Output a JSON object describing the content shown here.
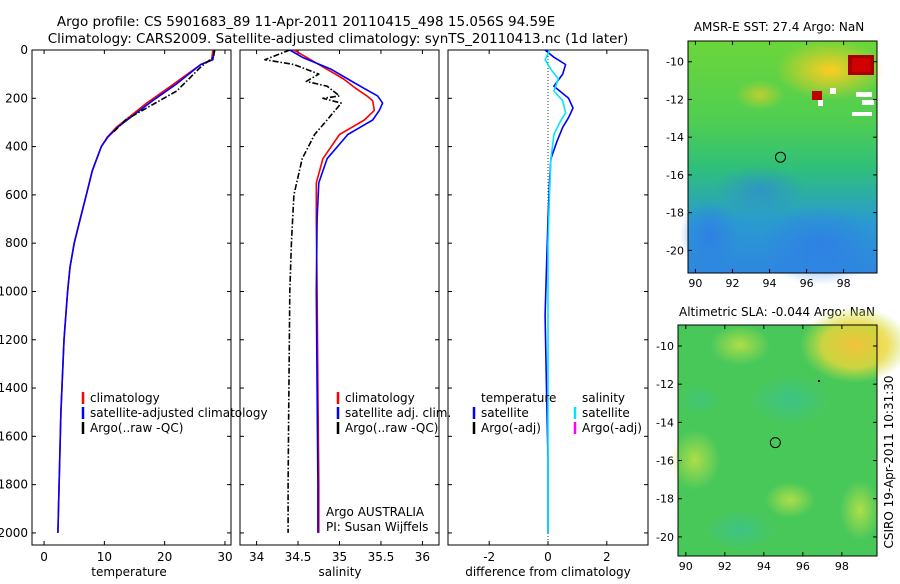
{
  "header": {
    "title_line1": "Argo profile: CS 5901683_89 11-Apr-2011 20110415_498 15.056S 94.59E",
    "title_line2": "Climatology: CARS2009. Satellite-adjusted climatology: synTS_20110413.nc (1d later)"
  },
  "side_stamp": "CSIRO 19-Apr-2011 10:31:30",
  "colors": {
    "climatology": "#ff0000",
    "satellite": "#0000ff",
    "argo": "#000000",
    "salinity_satellite": "#00e5ff",
    "salinity_argo_adj": "#ff00ff"
  },
  "chart_data": [
    {
      "type": "line",
      "xlabel": "temperature",
      "xlim": [
        -2,
        31
      ],
      "ylim": [
        0,
        2050
      ],
      "y_reversed": true,
      "xticks": [
        0,
        10,
        20,
        30
      ],
      "yticks": [
        0,
        200,
        400,
        600,
        800,
        1000,
        1200,
        1400,
        1600,
        1800,
        2000
      ],
      "legend": [
        "climatology",
        "satellite-adjusted climatology",
        "Argo(..raw -QC)"
      ],
      "legend_colors": [
        "#ff0000",
        "#0000ff",
        "#000000"
      ],
      "series": [
        {
          "name": "climatology",
          "color": "#ff0000",
          "dash": "",
          "x": [
            28.0,
            27.8,
            26,
            21,
            17,
            14,
            12,
            10.5,
            9.5,
            8,
            7,
            6,
            5,
            4.3,
            3.9,
            3.3,
            2.8,
            2.5,
            2.3
          ],
          "y": [
            0,
            40,
            60,
            150,
            220,
            280,
            320,
            360,
            400,
            500,
            600,
            700,
            800,
            900,
            1000,
            1200,
            1500,
            1800,
            2000
          ]
        },
        {
          "name": "satellite-adjusted climatology",
          "color": "#0000ff",
          "dash": "",
          "x": [
            28.2,
            28.0,
            26,
            22,
            18,
            14.3,
            12.2,
            10.6,
            9.5,
            8,
            7,
            6,
            5,
            4.3,
            3.9,
            3.3,
            2.8,
            2.5,
            2.3
          ],
          "y": [
            0,
            40,
            60,
            140,
            210,
            280,
            320,
            360,
            400,
            500,
            600,
            700,
            800,
            900,
            1000,
            1200,
            1500,
            1800,
            2000
          ]
        },
        {
          "name": "Argo(..raw -QC)",
          "color": "#000000",
          "dash": "6,2,1.5,2",
          "x": [
            28.3,
            28.1,
            26,
            24,
            22,
            17,
            13.5,
            11.5
          ],
          "y": [
            0,
            30,
            70,
            120,
            170,
            240,
            290,
            340
          ]
        }
      ]
    },
    {
      "type": "line",
      "xlabel": "salinity",
      "xlim": [
        33.8,
        36.2
      ],
      "ylim": [
        0,
        2050
      ],
      "y_reversed": true,
      "xticks": [
        34,
        34.5,
        35,
        35.5,
        36
      ],
      "legend": [
        "climatology",
        "satellite adj. clim.",
        "Argo(..raw -QC)"
      ],
      "legend_colors": [
        "#ff0000",
        "#0000ff",
        "#000000"
      ],
      "annotation": [
        "Argo AUSTRALIA",
        "PI: Susan Wijffels"
      ],
      "series": [
        {
          "name": "climatology",
          "color": "#ff0000",
          "dash": "",
          "x": [
            34.45,
            34.6,
            34.85,
            35.05,
            35.2,
            35.33,
            35.4,
            35.42,
            35.3,
            35.0,
            34.8,
            34.72,
            34.72,
            34.73,
            34.74,
            34.75,
            34.75
          ],
          "y": [
            0,
            30,
            80,
            120,
            160,
            190,
            210,
            250,
            290,
            350,
            450,
            550,
            700,
            1000,
            1400,
            1800,
            2000
          ]
        },
        {
          "name": "satellite adj. clim.",
          "color": "#0000ff",
          "dash": "",
          "x": [
            34.4,
            34.55,
            34.9,
            35.1,
            35.3,
            35.46,
            35.52,
            35.48,
            35.4,
            35.1,
            34.85,
            34.75,
            34.73,
            34.72,
            34.73,
            34.74,
            34.74
          ],
          "y": [
            0,
            30,
            80,
            120,
            160,
            190,
            220,
            250,
            290,
            350,
            450,
            550,
            700,
            1000,
            1400,
            1800,
            2000
          ]
        },
        {
          "name": "Argo(..raw -QC)",
          "color": "#000000",
          "dash": "6,2,1.5,2",
          "x": [
            34.4,
            34.1,
            34.45,
            34.75,
            34.6,
            34.85,
            35.0,
            34.8,
            35.02,
            34.85,
            34.7,
            34.55,
            34.45,
            34.42,
            34.4,
            34.39,
            34.38,
            34.38
          ],
          "y": [
            0,
            40,
            60,
            100,
            130,
            150,
            190,
            200,
            220,
            290,
            350,
            450,
            600,
            800,
            1000,
            1400,
            1800,
            2000
          ]
        }
      ]
    },
    {
      "type": "line",
      "xlabel": "difference from climatology",
      "xlim": [
        -3.4,
        3.4
      ],
      "ylim": [
        0,
        2050
      ],
      "y_reversed": true,
      "xticks": [
        -2,
        0,
        2
      ],
      "legend_groups": [
        {
          "title": "temperature",
          "items": [
            "satellite",
            "Argo(-adj)"
          ],
          "colors": [
            "#0000ff",
            "#000000"
          ]
        },
        {
          "title": "salinity",
          "items": [
            "satellite",
            "Argo(-adj)"
          ],
          "colors": [
            "#00e5ff",
            "#ff00ff"
          ]
        }
      ],
      "series": [
        {
          "name": "temperature satellite",
          "color": "#0000ff",
          "dash": "",
          "x": [
            -0.1,
            0.2,
            0.6,
            0.5,
            0.2,
            0.7,
            0.85,
            0.7,
            0.5,
            0.3,
            0.1,
            0.05,
            0.0,
            -0.05,
            -0.1,
            -0.05,
            0.0,
            0.0
          ],
          "y": [
            0,
            30,
            60,
            100,
            150,
            200,
            240,
            280,
            320,
            380,
            450,
            550,
            700,
            900,
            1100,
            1400,
            1700,
            2000
          ]
        },
        {
          "name": "salinity satellite",
          "color": "#00e5ff",
          "dash": "",
          "x": [
            0.05,
            -0.1,
            0.1,
            0.35,
            0.2,
            0.5,
            0.6,
            0.4,
            0.2,
            0.1,
            0.05,
            0.0,
            0.0,
            0.0,
            0.0,
            0.0
          ],
          "y": [
            0,
            40,
            80,
            120,
            170,
            210,
            260,
            300,
            350,
            450,
            600,
            800,
            1100,
            1400,
            1700,
            2000
          ]
        }
      ]
    },
    {
      "type": "heatmap",
      "title": "AMSR-E SST: 27.4 Argo: NaN",
      "xticks": [
        90,
        92,
        94,
        96,
        98
      ],
      "yticks": [
        -10,
        -12,
        -14,
        -16,
        -18,
        -20
      ],
      "xlim": [
        89.6,
        99.8
      ],
      "ylim": [
        -21.2,
        -8.9
      ],
      "marker": {
        "lon": 94.59,
        "lat": -15.06
      }
    },
    {
      "type": "heatmap",
      "title": "Altimetric SLA: -0.044 Argo: NaN",
      "xticks": [
        90,
        92,
        94,
        96,
        98
      ],
      "yticks": [
        -10,
        -12,
        -14,
        -16,
        -18,
        -20
      ],
      "xlim": [
        89.6,
        99.8
      ],
      "ylim": [
        -21.0,
        -8.9
      ],
      "marker": {
        "lon": 94.59,
        "lat": -15.06
      }
    }
  ]
}
